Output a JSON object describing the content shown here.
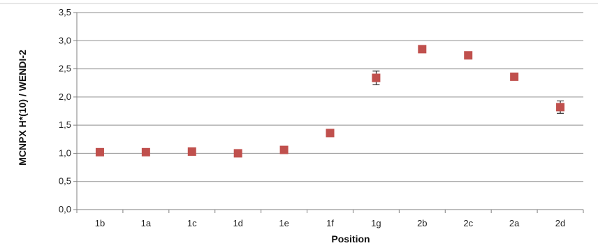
{
  "chart_data": {
    "type": "scatter",
    "title": "",
    "xlabel": "Position",
    "ylabel": "MCNPX H*(10) / WENDI-2",
    "categories": [
      "1b",
      "1a",
      "1c",
      "1d",
      "1e",
      "1f",
      "1g",
      "2b",
      "2c",
      "2a",
      "2d"
    ],
    "values": [
      1.02,
      1.02,
      1.03,
      1.0,
      1.06,
      1.36,
      2.34,
      2.85,
      2.74,
      2.36,
      1.82
    ],
    "error": [
      0.02,
      0.02,
      0.02,
      0.02,
      0.02,
      0.05,
      0.12,
      0.02,
      0.02,
      0.02,
      0.11
    ],
    "ylim": [
      0,
      3.5
    ],
    "yticks": [
      "0,0",
      "0,5",
      "1,0",
      "1,5",
      "2,0",
      "2,5",
      "3,0",
      "3,5"
    ],
    "grid": true,
    "legend": "none",
    "marker": "square",
    "marker_color": "#C0504D",
    "grid_color": "#8E8E8E"
  }
}
